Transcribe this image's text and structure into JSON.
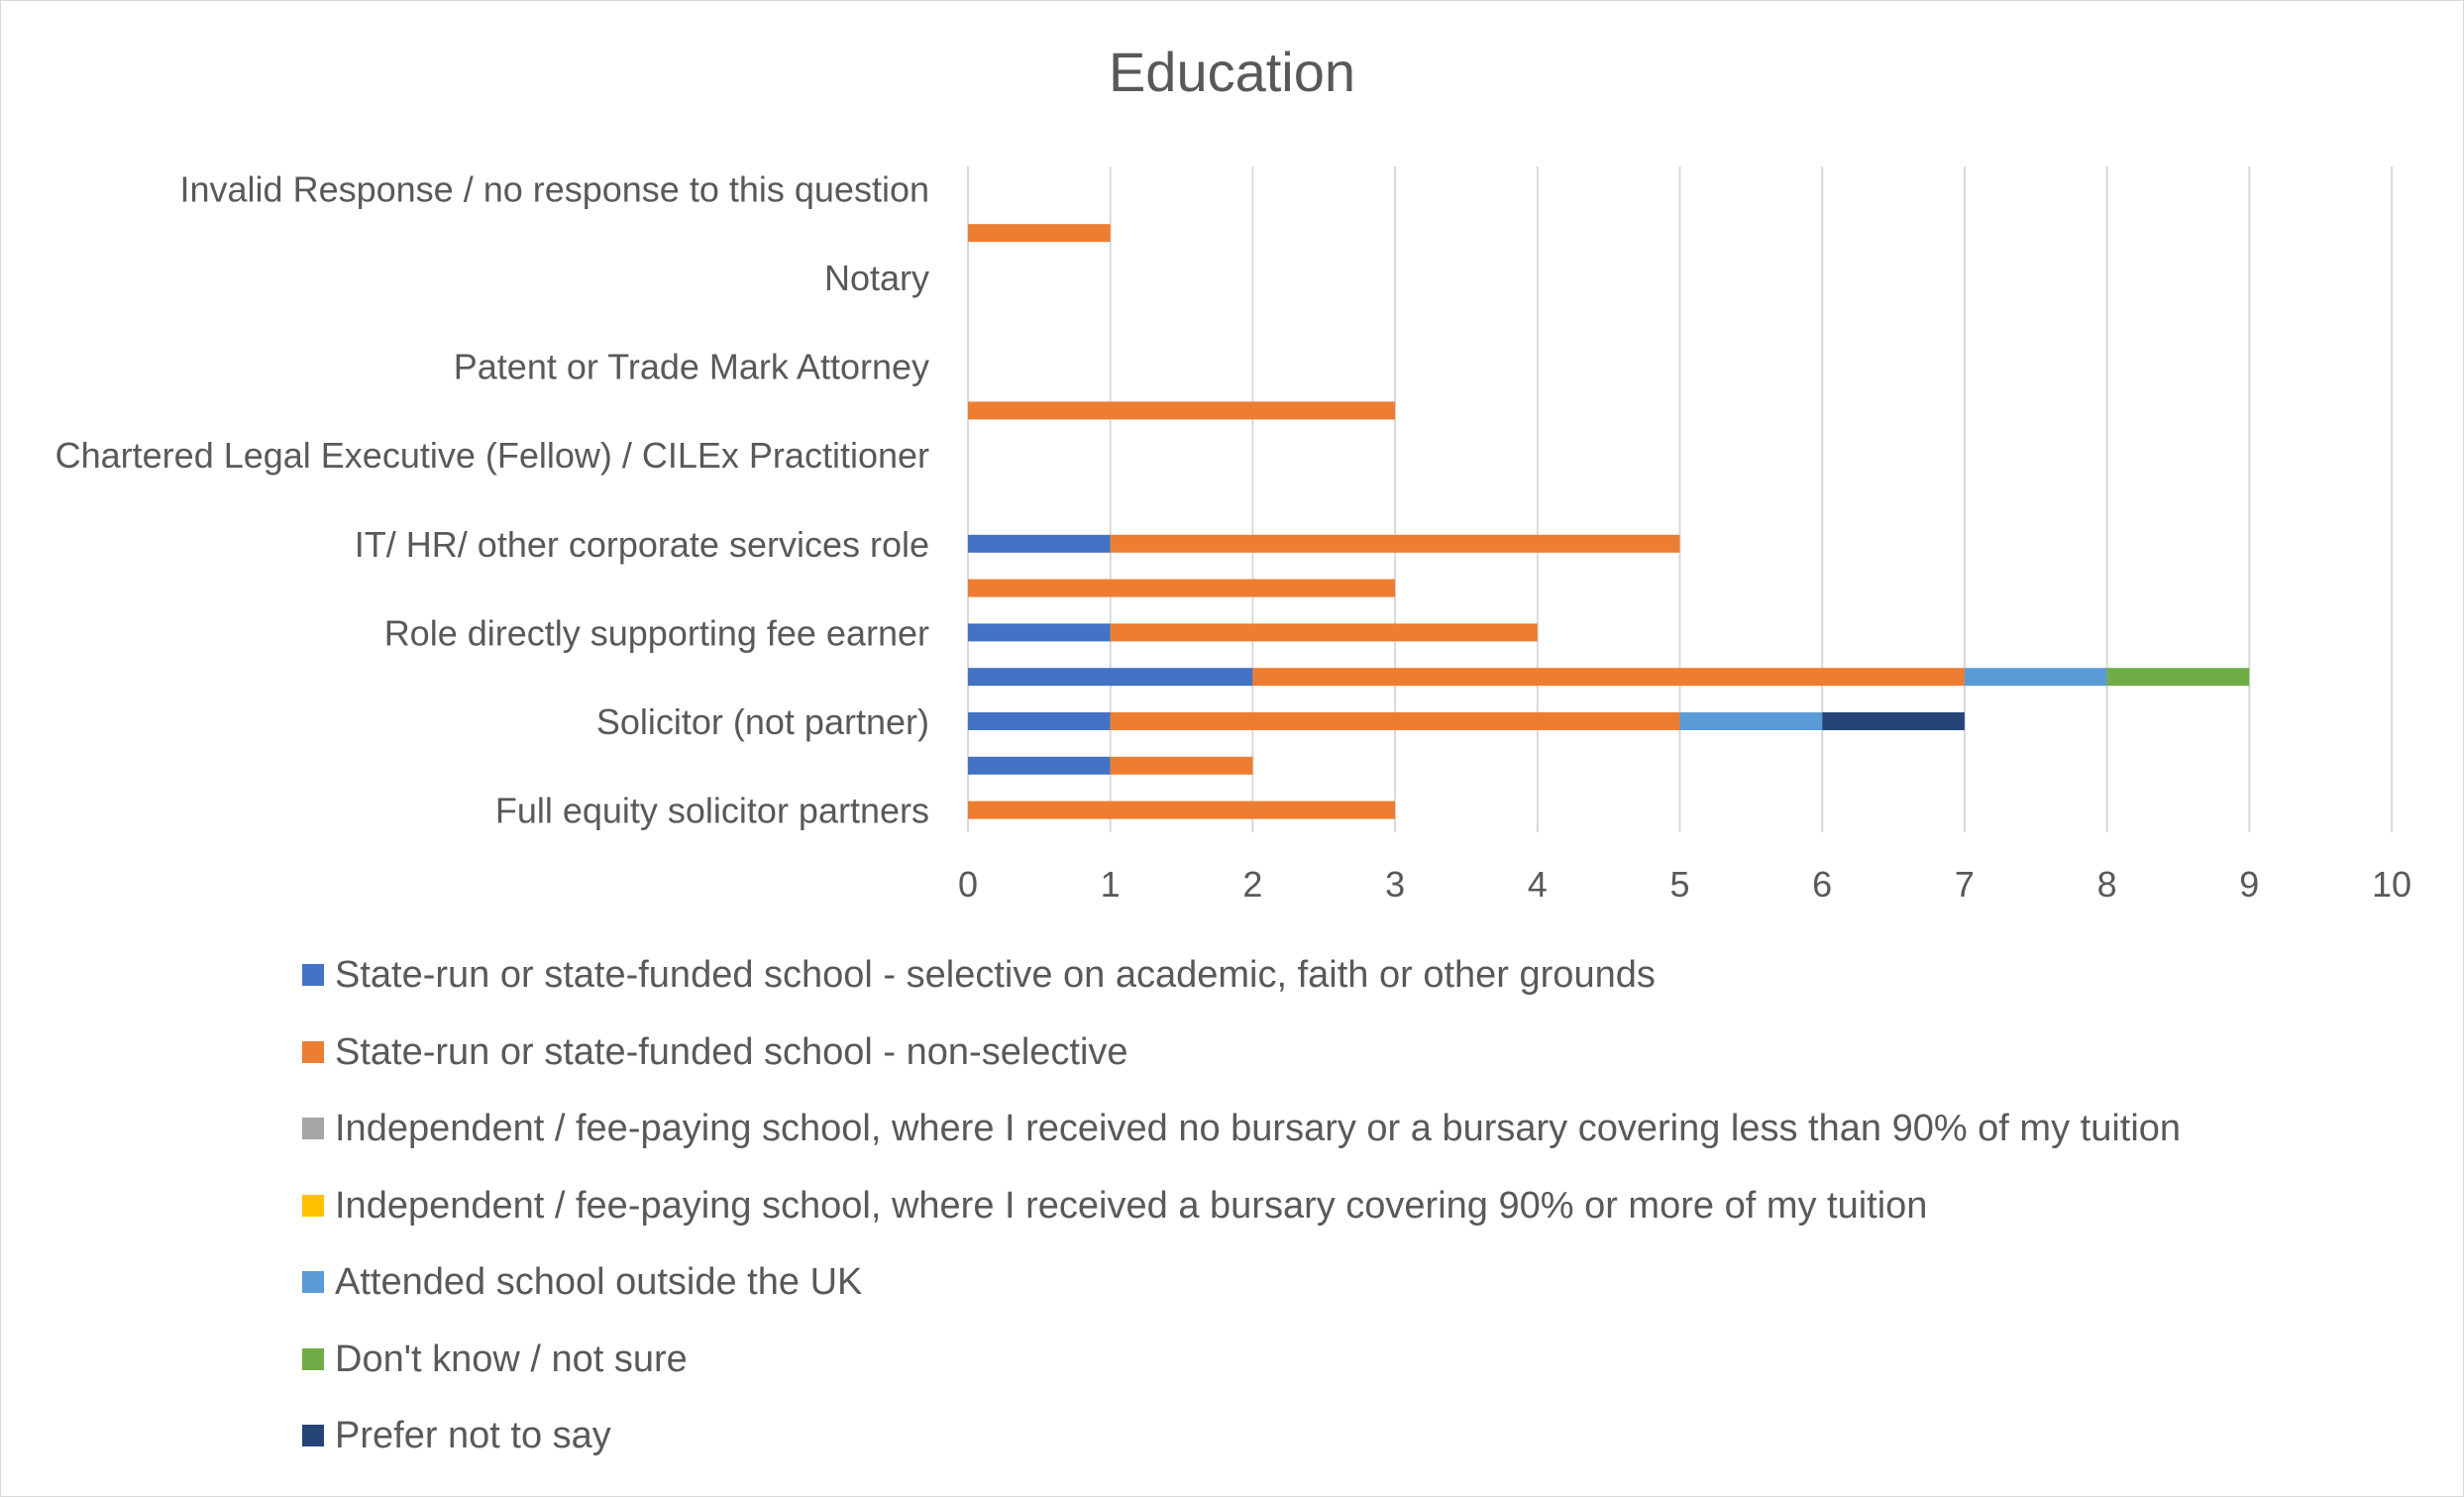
{
  "chart_data": {
    "type": "bar",
    "orientation": "horizontal",
    "stacked": true,
    "title": "Education",
    "xlim": [
      0,
      10
    ],
    "xticks": [
      0,
      1,
      2,
      3,
      4,
      5,
      6,
      7,
      8,
      9,
      10
    ],
    "grid": "vertical",
    "legend_position": "bottom",
    "categories": [
      "Full equity solicitor partners",
      "",
      "Solicitor (not partner)",
      "",
      "Role directly supporting fee earner",
      "",
      "IT/ HR/ other corporate services role",
      "",
      "Chartered Legal Executive (Fellow) / CILEx Practitioner",
      "",
      "Patent or Trade Mark Attorney",
      "",
      "Notary",
      "",
      "Invalid Response / no response to this question"
    ],
    "series": [
      {
        "name": "State-run or state-funded school - selective on academic, faith or other grounds",
        "color": "#4472C4",
        "values": [
          0,
          1,
          1,
          2,
          1,
          0,
          1,
          0,
          0,
          0,
          0,
          0,
          0,
          0,
          0
        ]
      },
      {
        "name": "State-run or state-funded school - non-selective",
        "color": "#ED7D31",
        "values": [
          3,
          1,
          4,
          5,
          3,
          3,
          4,
          0,
          0,
          3,
          0,
          0,
          0,
          1,
          0
        ]
      },
      {
        "name": "Independent / fee-paying school, where I received no bursary or a bursary covering less than 90% of my tuition",
        "color": "#A5A5A5",
        "values": [
          0,
          0,
          0,
          0,
          0,
          0,
          0,
          0,
          0,
          0,
          0,
          0,
          0,
          0,
          0
        ]
      },
      {
        "name": "Independent / fee-paying school, where I received a bursary covering 90% or more of my tuition",
        "color": "#FFC000",
        "values": [
          0,
          0,
          0,
          0,
          0,
          0,
          0,
          0,
          0,
          0,
          0,
          0,
          0,
          0,
          0
        ]
      },
      {
        "name": "Attended school outside the UK",
        "color": "#5B9BD5",
        "values": [
          0,
          0,
          1,
          1,
          0,
          0,
          0,
          0,
          0,
          0,
          0,
          0,
          0,
          0,
          0
        ]
      },
      {
        "name": "Don't know / not sure",
        "color": "#70AD47",
        "values": [
          0,
          0,
          0,
          1,
          0,
          0,
          0,
          0,
          0,
          0,
          0,
          0,
          0,
          0,
          0
        ]
      },
      {
        "name": "Prefer not to say",
        "color": "#264478",
        "values": [
          0,
          0,
          1,
          0,
          0,
          0,
          0,
          0,
          0,
          0,
          0,
          0,
          0,
          0,
          0
        ]
      }
    ]
  }
}
